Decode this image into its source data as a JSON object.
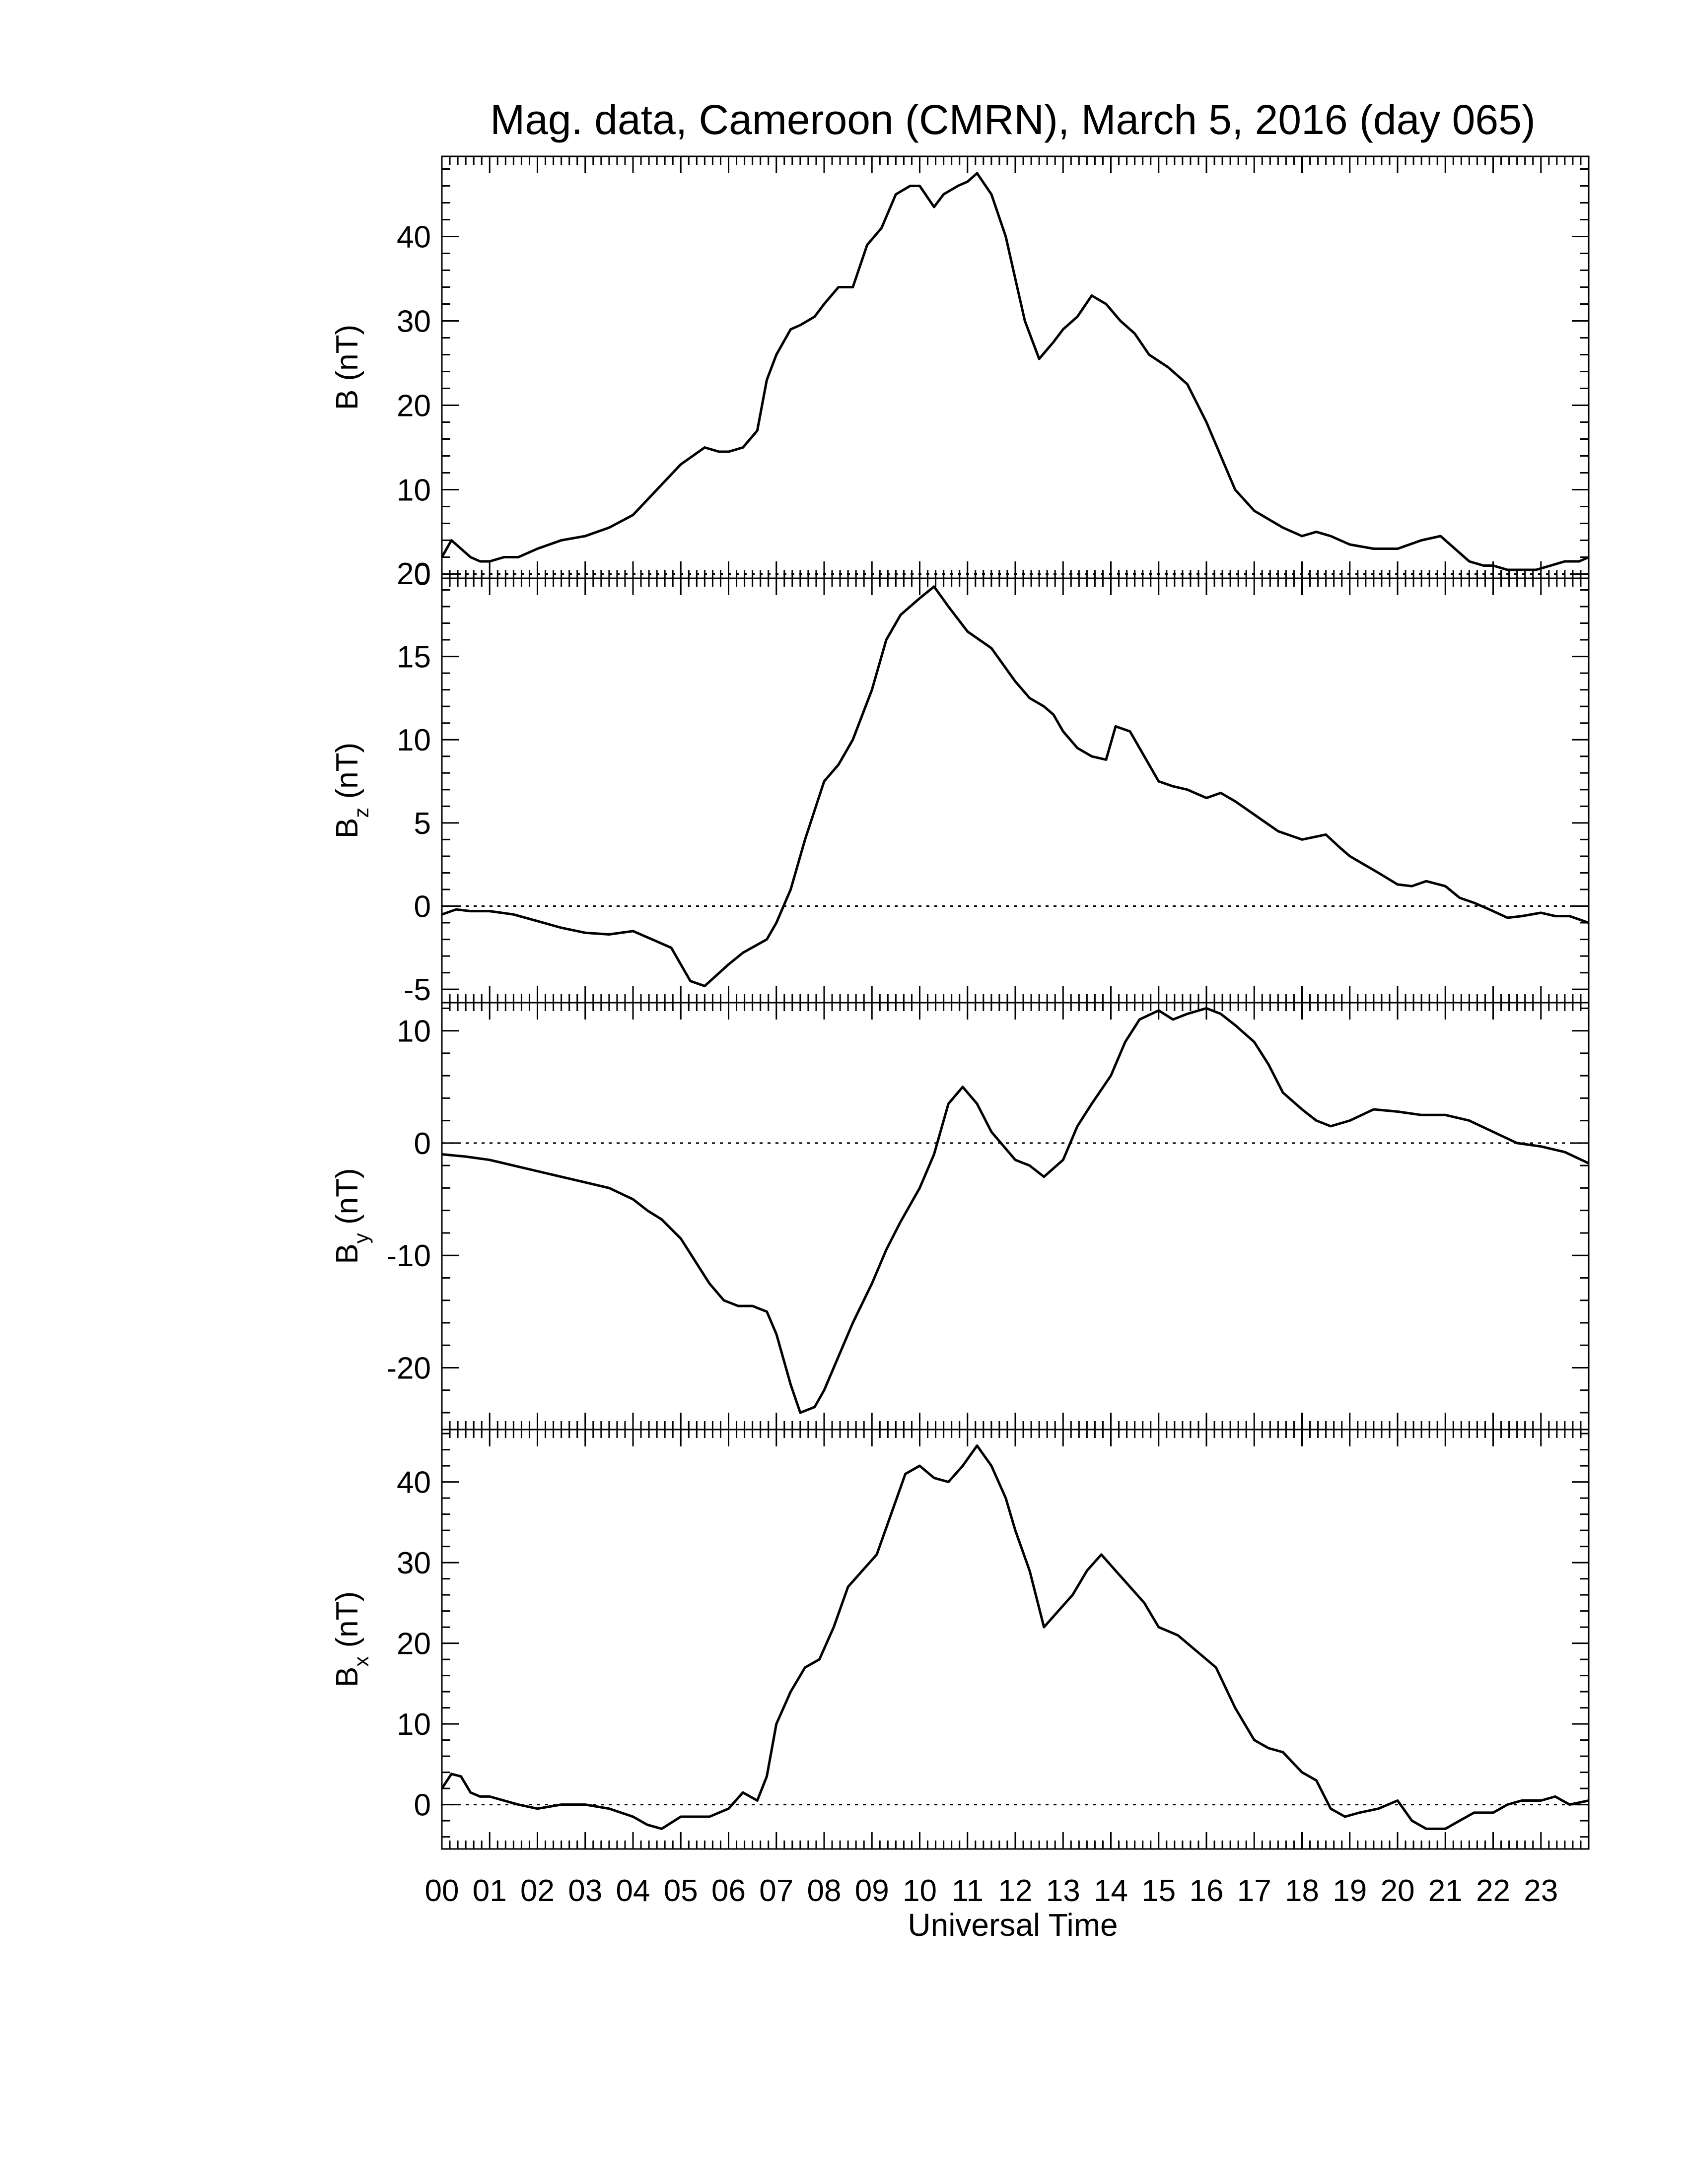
{
  "chart_data": {
    "type": "line",
    "title": "Mag. data, Cameroon (CMRN), March 5, 2016 (day 065)",
    "xlabel": "Universal Time",
    "x_tick_labels": [
      "00",
      "01",
      "02",
      "03",
      "04",
      "05",
      "06",
      "07",
      "08",
      "09",
      "10",
      "11",
      "12",
      "13",
      "14",
      "15",
      "16",
      "17",
      "18",
      "19",
      "20",
      "21",
      "22",
      "23"
    ],
    "xlim": [
      0,
      24
    ],
    "grid": false,
    "zero_reference_line": "dotted",
    "panels": [
      {
        "ylabel_main": "B",
        "ylabel_sub": "",
        "ylabel_unit": " (nT)",
        "ylim": [
          -0.5,
          49.5
        ],
        "yticks": [
          0,
          10,
          20,
          30,
          40
        ],
        "series": [
          {
            "x": [
              0.0,
              0.2,
              0.4,
              0.6,
              0.8,
              1.0,
              1.3,
              1.6,
              2.0,
              2.5,
              3.0,
              3.5,
              4.0,
              4.5,
              5.0,
              5.5,
              5.8,
              6.0,
              6.3,
              6.6,
              6.8,
              7.0,
              7.3,
              7.5,
              7.8,
              8.0,
              8.3,
              8.6,
              8.9,
              9.2,
              9.5,
              9.8,
              10.0,
              10.3,
              10.5,
              10.8,
              11.0,
              11.2,
              11.5,
              11.8,
              12.0,
              12.2,
              12.5,
              12.8,
              13.0,
              13.3,
              13.6,
              13.9,
              14.2,
              14.5,
              14.8,
              15.2,
              15.6,
              16.0,
              16.3,
              16.6,
              17.0,
              17.3,
              17.6,
              18.0,
              18.3,
              18.6,
              19.0,
              19.5,
              20.0,
              20.5,
              20.9,
              21.2,
              21.5,
              21.8,
              22.0,
              22.3,
              22.6,
              22.9,
              23.2,
              23.5,
              23.8,
              24.0
            ],
            "y": [
              2,
              4,
              3,
              2,
              1.5,
              1.5,
              2,
              2,
              3,
              4,
              4.5,
              5.5,
              7,
              10,
              13,
              15,
              14.5,
              14.5,
              15,
              17,
              23,
              26,
              29,
              29.5,
              30.5,
              32,
              34,
              34,
              39,
              41,
              45,
              46,
              46,
              43.5,
              45,
              46,
              46.5,
              47.5,
              45,
              40,
              35,
              30,
              25.5,
              27.5,
              29,
              30.5,
              33,
              32,
              30,
              28.5,
              26,
              24.5,
              22.5,
              18,
              14,
              10,
              7.5,
              6.5,
              5.5,
              4.5,
              5,
              4.5,
              3.5,
              3,
              3,
              4,
              4.5,
              3,
              1.5,
              1,
              1,
              0.5,
              0.5,
              0.5,
              1,
              1.5,
              1.5,
              2
            ]
          }
        ]
      },
      {
        "ylabel_main": "B",
        "ylabel_sub": "z",
        "ylabel_unit": " (nT)",
        "ylim": [
          -5.8,
          19.7
        ],
        "yticks": [
          -5,
          0,
          5,
          10,
          15,
          20
        ],
        "series": [
          {
            "x": [
              0.0,
              0.3,
              0.6,
              1.0,
              1.5,
              2.0,
              2.5,
              3.0,
              3.5,
              4.0,
              4.4,
              4.8,
              5.0,
              5.2,
              5.5,
              6.0,
              6.3,
              6.8,
              7.0,
              7.3,
              7.6,
              8.0,
              8.3,
              8.6,
              9.0,
              9.3,
              9.6,
              10.0,
              10.3,
              10.6,
              11.0,
              11.5,
              12.0,
              12.3,
              12.6,
              12.8,
              13.0,
              13.3,
              13.6,
              13.9,
              14.1,
              14.4,
              14.7,
              15.0,
              15.3,
              15.6,
              16.0,
              16.3,
              16.6,
              17.0,
              17.5,
              18.0,
              18.5,
              18.8,
              19.0,
              19.3,
              19.6,
              20.0,
              20.3,
              20.6,
              21.0,
              21.3,
              21.6,
              22.0,
              22.3,
              22.6,
              23.0,
              23.3,
              23.6,
              24.0
            ],
            "y": [
              -0.5,
              -0.2,
              -0.3,
              -0.3,
              -0.5,
              -0.9,
              -1.3,
              -1.6,
              -1.7,
              -1.5,
              -2.0,
              -2.5,
              -3.5,
              -4.5,
              -4.8,
              -3.5,
              -2.8,
              -2.0,
              -1.0,
              1.0,
              4.0,
              7.5,
              8.5,
              10,
              13,
              16,
              17.5,
              18.5,
              19.2,
              18,
              16.5,
              15.5,
              13.5,
              12.5,
              12,
              11.5,
              10.5,
              9.5,
              9,
              8.8,
              10.8,
              10.5,
              9,
              7.5,
              7.2,
              7.0,
              6.5,
              6.8,
              6.3,
              5.5,
              4.5,
              4.0,
              4.3,
              3.5,
              3.0,
              2.5,
              2.0,
              1.3,
              1.2,
              1.5,
              1.2,
              0.5,
              0.2,
              -0.3,
              -0.7,
              -0.6,
              -0.4,
              -0.6,
              -0.6,
              -1.0
            ]
          }
        ]
      },
      {
        "ylabel_main": "B",
        "ylabel_sub": "y",
        "ylabel_unit": " (nT)",
        "ylim": [
          -25.5,
          12.5
        ],
        "yticks": [
          -20,
          -10,
          0,
          10
        ],
        "series": [
          {
            "x": [
              0.0,
              0.5,
              1.0,
              1.5,
              2.0,
              2.5,
              3.0,
              3.5,
              4.0,
              4.3,
              4.6,
              5.0,
              5.3,
              5.6,
              5.9,
              6.2,
              6.5,
              6.8,
              7.0,
              7.3,
              7.5,
              7.8,
              8.0,
              8.3,
              8.6,
              9.0,
              9.3,
              9.6,
              10.0,
              10.3,
              10.6,
              10.9,
              11.2,
              11.5,
              11.8,
              12.0,
              12.3,
              12.6,
              13.0,
              13.3,
              13.6,
              14.0,
              14.3,
              14.6,
              15.0,
              15.3,
              15.6,
              16.0,
              16.3,
              16.6,
              17.0,
              17.3,
              17.6,
              18.0,
              18.3,
              18.6,
              19.0,
              19.5,
              20.0,
              20.5,
              21.0,
              21.5,
              22.0,
              22.5,
              23.0,
              23.5,
              24.0
            ],
            "y": [
              -1,
              -1.2,
              -1.5,
              -2,
              -2.5,
              -3,
              -3.5,
              -4,
              -5,
              -6,
              -6.8,
              -8.5,
              -10.5,
              -12.5,
              -14,
              -14.5,
              -14.5,
              -15,
              -17,
              -21.5,
              -24,
              -23.5,
              -22,
              -19,
              -16,
              -12.5,
              -9.5,
              -7,
              -4,
              -1,
              3.5,
              5,
              3.5,
              1,
              -0.5,
              -1.5,
              -2,
              -3,
              -1.5,
              1.5,
              3.5,
              6,
              9,
              11,
              11.8,
              11.0,
              11.5,
              12,
              11.5,
              10.5,
              9,
              7,
              4.5,
              3,
              2,
              1.5,
              2,
              3,
              2.8,
              2.5,
              2.5,
              2,
              1,
              0,
              -0.3,
              -0.8,
              -1.8
            ]
          }
        ]
      },
      {
        "ylabel_main": "B",
        "ylabel_sub": "x",
        "ylabel_unit": " (nT)",
        "ylim": [
          -5.5,
          46.5
        ],
        "yticks": [
          0,
          10,
          20,
          30,
          40
        ],
        "series": [
          {
            "x": [
              0.0,
              0.2,
              0.4,
              0.6,
              0.8,
              1.0,
              1.3,
              1.6,
              2.0,
              2.5,
              3.0,
              3.5,
              4.0,
              4.3,
              4.6,
              5.0,
              5.3,
              5.6,
              6.0,
              6.3,
              6.6,
              6.8,
              7.0,
              7.3,
              7.6,
              7.9,
              8.2,
              8.5,
              8.8,
              9.1,
              9.4,
              9.7,
              10.0,
              10.3,
              10.6,
              10.9,
              11.2,
              11.5,
              11.8,
              12.0,
              12.3,
              12.6,
              12.9,
              13.2,
              13.5,
              13.8,
              14.1,
              14.4,
              14.7,
              15.0,
              15.4,
              15.8,
              16.2,
              16.6,
              17.0,
              17.3,
              17.6,
              18.0,
              18.3,
              18.6,
              18.9,
              19.2,
              19.6,
              20.0,
              20.3,
              20.6,
              21.0,
              21.3,
              21.6,
              22.0,
              22.3,
              22.6,
              23.0,
              23.3,
              23.6,
              24.0
            ],
            "y": [
              2,
              3.8,
              3.5,
              1.5,
              1,
              1,
              0.5,
              0,
              -0.5,
              0,
              0,
              -0.5,
              -1.5,
              -2.5,
              -3,
              -1.5,
              -1.5,
              -1.5,
              -0.5,
              1.5,
              0.5,
              3.5,
              10,
              14,
              17,
              18,
              22,
              27,
              29,
              31,
              36,
              41,
              42,
              40.5,
              40,
              42,
              44.5,
              42,
              38,
              34,
              29,
              22,
              24,
              26,
              29,
              31,
              29,
              27,
              25,
              22,
              21,
              19,
              17,
              12,
              8,
              7,
              6.5,
              4,
              3,
              -0.5,
              -1.5,
              -1,
              -0.5,
              0.5,
              -2,
              -3,
              -3,
              -2,
              -1,
              -1,
              0,
              0.5,
              0.5,
              1,
              0,
              0.5
            ]
          }
        ]
      }
    ]
  }
}
